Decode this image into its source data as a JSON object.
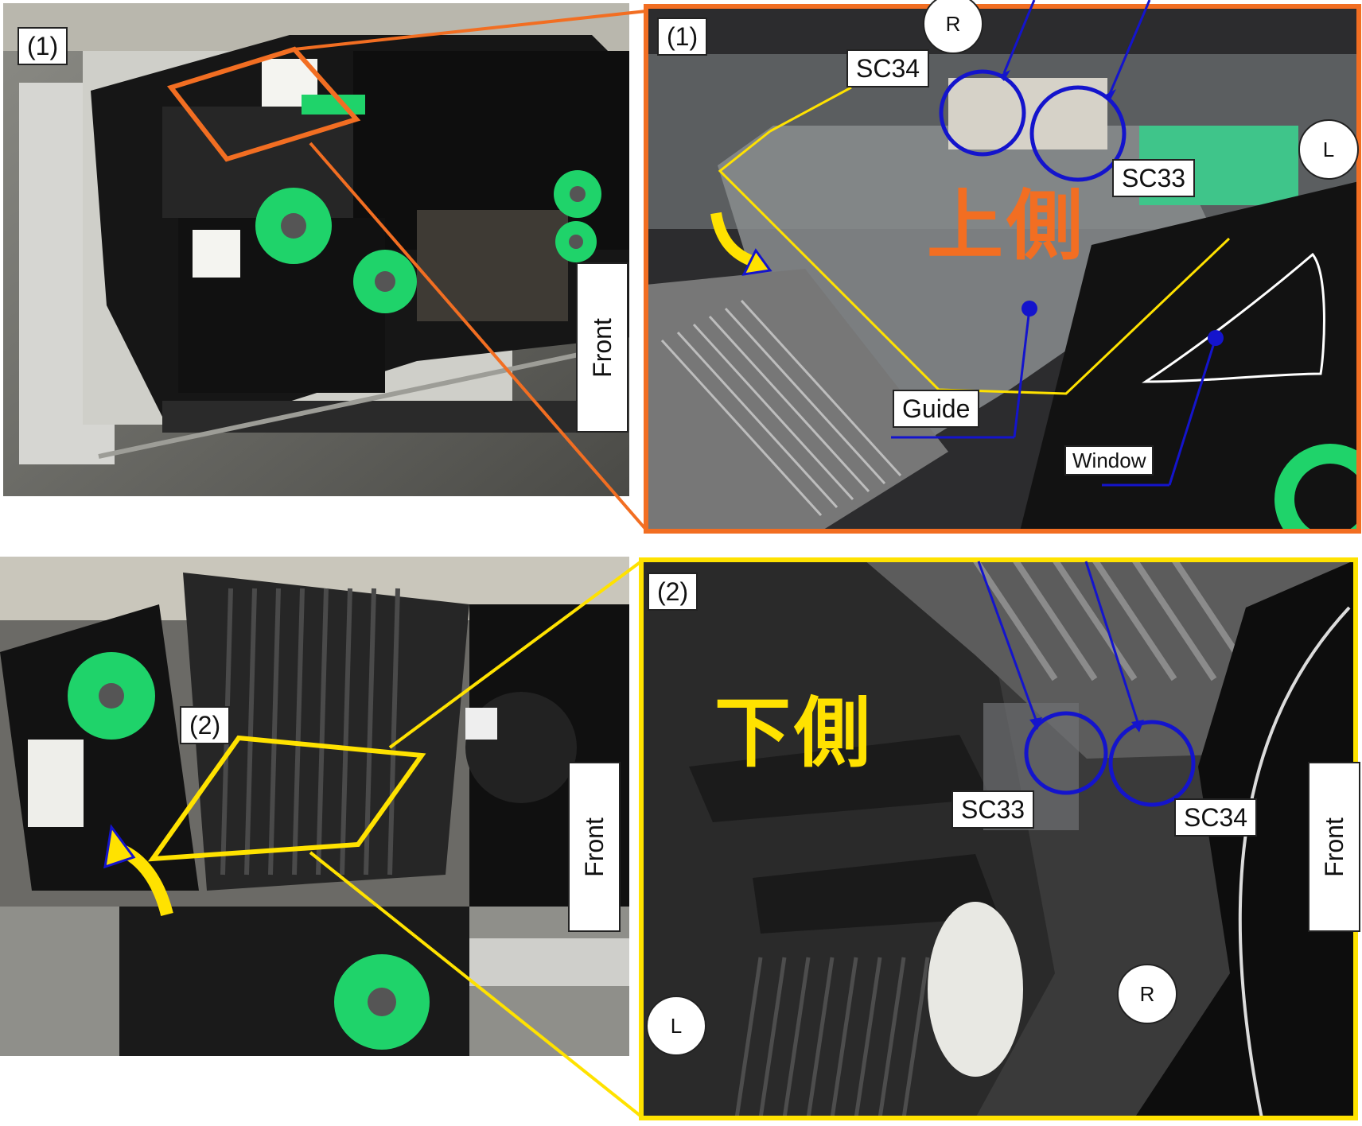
{
  "colors": {
    "panel_upper_border": "#F26E22",
    "panel_lower_border": "#FFE200",
    "callout_circle": "#1414CC",
    "upper_jp_text": "#F26E22",
    "lower_jp_text": "#FFE200",
    "roller_green": "#1FD36A",
    "machine_black": "#141414"
  },
  "panel1_overview": {
    "step_label": "(1)",
    "front_label": "Front"
  },
  "panel1_detail": {
    "step_label": "(1)",
    "side_label_jp": "上側",
    "callouts": {
      "sc34": "SC34",
      "sc33": "SC33",
      "guide": "Guide",
      "window": "Window"
    },
    "markers": {
      "r": "R",
      "l": "L"
    }
  },
  "panel2_overview": {
    "step_label": "(2)",
    "front_label": "Front"
  },
  "panel2_detail": {
    "step_label": "(2)",
    "side_label_jp": "下側",
    "callouts": {
      "sc33": "SC33",
      "sc34": "SC34"
    },
    "markers": {
      "r": "R",
      "l": "L"
    },
    "front_label": "Front"
  }
}
